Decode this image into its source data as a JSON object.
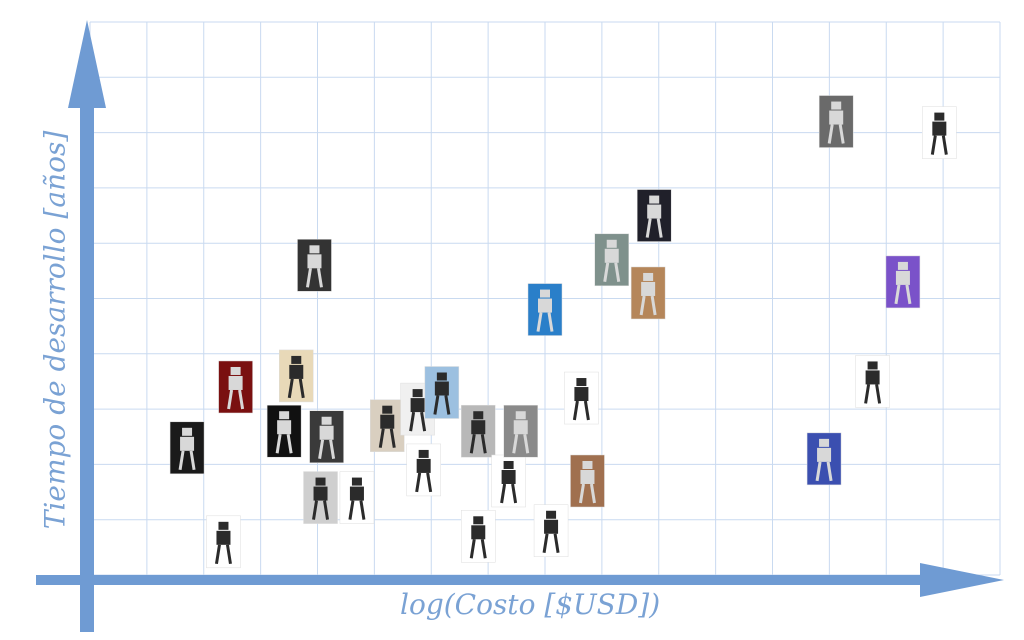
{
  "x_axis_label": "log(Costo [$USD])",
  "y_axis_label": "Tiempo de desarrollo [años]",
  "colors": {
    "grid": "#c9daf0",
    "axis": "#6f9bd3",
    "label": "#7aa2d4",
    "photo_dark": "#2b2b2b",
    "photo_light": "#d8d8d8"
  },
  "grid": {
    "vertical_lines": 16,
    "horizontal_lines": 10
  },
  "robots": [
    {
      "name": "robot-small-black",
      "x": 2.2,
      "y": 0.6,
      "bg": "#ffffff"
    },
    {
      "name": "robot-red-arm",
      "x": 1.6,
      "y": 2.3,
      "bg": "#1a1a1a"
    },
    {
      "name": "robot-red-frame",
      "x": 2.4,
      "y": 3.4,
      "bg": "#7a1010"
    },
    {
      "name": "robot-beige",
      "x": 3.4,
      "y": 3.6,
      "bg": "#e8d9b8"
    },
    {
      "name": "robot-dark-tall",
      "x": 3.7,
      "y": 5.6,
      "bg": "#333333"
    },
    {
      "name": "robot-white-lines",
      "x": 3.2,
      "y": 2.6,
      "bg": "#111111"
    },
    {
      "name": "robot-gray",
      "x": 3.9,
      "y": 2.5,
      "bg": "#3a3a3a"
    },
    {
      "name": "robot-light-gray",
      "x": 3.8,
      "y": 1.4,
      "bg": "#cfcfcf"
    },
    {
      "name": "robot-legs-thin",
      "x": 4.4,
      "y": 1.4,
      "bg": "#ffffff"
    },
    {
      "name": "robot-beige-2",
      "x": 4.9,
      "y": 2.7,
      "bg": "#d9cfc0"
    },
    {
      "name": "robot-silver-1",
      "x": 5.4,
      "y": 3.0,
      "bg": "#f0f0f0"
    },
    {
      "name": "robot-blue-thin",
      "x": 5.8,
      "y": 3.3,
      "bg": "#9cc0e0"
    },
    {
      "name": "robot-walker",
      "x": 5.5,
      "y": 1.9,
      "bg": "#ffffff"
    },
    {
      "name": "robot-dark-2",
      "x": 6.4,
      "y": 2.6,
      "bg": "#b8b8b8"
    },
    {
      "name": "robot-small-white",
      "x": 6.4,
      "y": 0.7,
      "bg": "#ffffff"
    },
    {
      "name": "robot-camera",
      "x": 6.9,
      "y": 1.7,
      "bg": "#ffffff"
    },
    {
      "name": "robot-box",
      "x": 7.1,
      "y": 2.6,
      "bg": "#8a8a8a"
    },
    {
      "name": "robot-black-small",
      "x": 7.6,
      "y": 0.8,
      "bg": "#ffffff"
    },
    {
      "name": "robot-blue-bg",
      "x": 7.5,
      "y": 4.8,
      "bg": "#2a7fc9"
    },
    {
      "name": "robot-orange-ball",
      "x": 8.1,
      "y": 3.2,
      "bg": "#ffffff"
    },
    {
      "name": "robot-brown",
      "x": 8.2,
      "y": 1.7,
      "bg": "#a0704f"
    },
    {
      "name": "robot-green-gray",
      "x": 8.6,
      "y": 5.7,
      "bg": "#7f918c"
    },
    {
      "name": "robot-dome",
      "x": 9.3,
      "y": 6.5,
      "bg": "#20202a"
    },
    {
      "name": "robot-tan",
      "x": 9.2,
      "y": 5.1,
      "bg": "#b5865a"
    },
    {
      "name": "robot-old-lab",
      "x": 12.3,
      "y": 8.2,
      "bg": "#6a6a6a"
    },
    {
      "name": "robot-asimo",
      "x": 14.0,
      "y": 8.0,
      "bg": "#ffffff"
    },
    {
      "name": "robot-purple",
      "x": 13.4,
      "y": 5.3,
      "bg": "#7a52c9"
    },
    {
      "name": "robot-seated",
      "x": 12.9,
      "y": 3.5,
      "bg": "#ffffff"
    },
    {
      "name": "robot-blue-tall",
      "x": 12.1,
      "y": 2.1,
      "bg": "#3b4fb0"
    }
  ]
}
